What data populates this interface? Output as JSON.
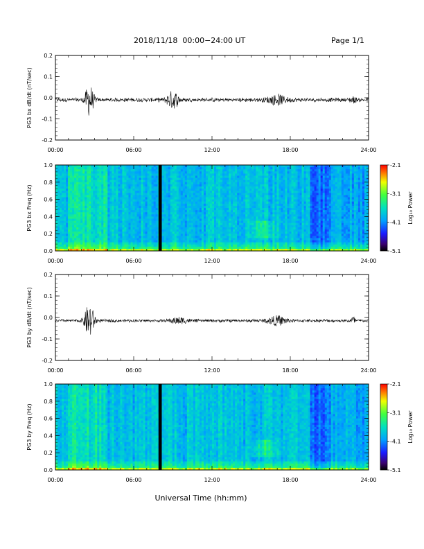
{
  "header": {
    "title": "2018/11/18  00:00−24:00 UT",
    "page": "Page 1/1"
  },
  "xlabel": "Universal Time (hh:mm)",
  "colorbar": {
    "label": "Log₁₀ Power",
    "ticks": [
      "-2.1",
      "-3.1",
      "-4.1",
      "-5.1"
    ]
  },
  "chart_data": [
    {
      "type": "line",
      "ylabel": "PG3 bx dB/dt (nT/sec)",
      "xlim_hours": [
        0,
        24
      ],
      "ylim": [
        -0.2,
        0.2
      ],
      "yticks": [
        "0.2",
        "0.1",
        "0.0",
        "-0.1",
        "-0.2"
      ],
      "xticks": [
        "00:00",
        "06:00",
        "12:00",
        "18:00",
        "24:00"
      ],
      "baseline": -0.01,
      "noise_amplitude": 0.008,
      "bursts": [
        {
          "t": 2.6,
          "amp": 0.07,
          "width": 0.45
        },
        {
          "t": 9.0,
          "amp": 0.04,
          "width": 0.6
        },
        {
          "t": 17.0,
          "amp": 0.02,
          "width": 1.0
        },
        {
          "t": 22.8,
          "amp": 0.012,
          "width": 0.3
        }
      ]
    },
    {
      "type": "heatmap",
      "ylabel": "PG3 bx Freq (Hz)",
      "ylim": [
        0.0,
        1.0
      ],
      "yticks": [
        "1.0",
        "0.8",
        "0.6",
        "0.4",
        "0.2",
        "0.0"
      ],
      "xticks": [
        "00:00",
        "06:00",
        "12:00",
        "18:00",
        "24:00"
      ],
      "color_range": [
        -5.1,
        -2.1
      ],
      "data_gap_hours": [
        7.9,
        8.15
      ]
    },
    {
      "type": "line",
      "ylabel": "PG3 by dB/dt (nT/sec)",
      "xlim_hours": [
        0,
        24
      ],
      "ylim": [
        -0.2,
        0.2
      ],
      "yticks": [
        "0.2",
        "0.1",
        "0.0",
        "-0.1",
        "-0.2"
      ],
      "xticks": [
        "00:00",
        "06:00",
        "12:00",
        "18:00",
        "24:00"
      ],
      "baseline": -0.015,
      "noise_amplitude": 0.006,
      "bursts": [
        {
          "t": 2.6,
          "amp": 0.08,
          "width": 0.5
        },
        {
          "t": 9.5,
          "amp": 0.012,
          "width": 1.0
        },
        {
          "t": 17.0,
          "amp": 0.02,
          "width": 1.0
        },
        {
          "t": 22.8,
          "amp": 0.015,
          "width": 0.3
        }
      ]
    },
    {
      "type": "heatmap",
      "ylabel": "PG3 by Freq (Hz)",
      "ylim": [
        0.0,
        1.0
      ],
      "yticks": [
        "1.0",
        "0.8",
        "0.6",
        "0.4",
        "0.2",
        "0.0"
      ],
      "xticks": [
        "00:00",
        "06:00",
        "12:00",
        "18:00",
        "24:00"
      ],
      "color_range": [
        -5.1,
        -2.1
      ],
      "data_gap_hours": [
        7.9,
        8.15
      ]
    }
  ]
}
